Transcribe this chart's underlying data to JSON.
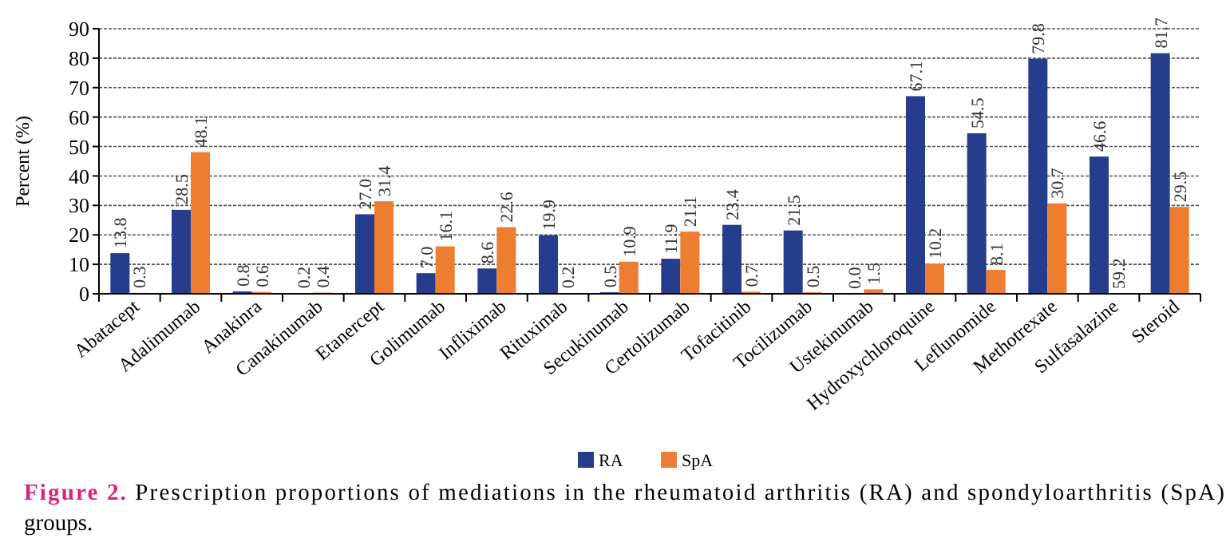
{
  "chart_data": {
    "type": "bar",
    "categories": [
      "Abatacept",
      "Adalimumab",
      "Anakinra",
      "Canakinumab",
      "Etanercept",
      "Golimumab",
      "Infliximab",
      "Rituximab",
      "Secukinumab",
      "Certolizumab",
      "Tofacitinib",
      "Tocilizumab",
      "Ustekinumab",
      "Hydroxychloroquine",
      "Leflunomide",
      "Methotrexate",
      "Sulfasalazine",
      "Steroid"
    ],
    "series": [
      {
        "name": "RA",
        "color": "#253d8c",
        "values": [
          13.8,
          28.5,
          0.8,
          0.2,
          27.0,
          7.0,
          8.6,
          19.9,
          0.5,
          11.9,
          23.4,
          21.5,
          0.0,
          67.1,
          54.5,
          79.8,
          46.6,
          81.7
        ],
        "value_labels": [
          "13.8",
          "28.5",
          "0.8",
          "0.2",
          "27.0",
          "7.0",
          "8.6",
          "19.9",
          "0.5",
          "11.9",
          "23.4",
          "21.5",
          "0.0",
          "67.1",
          "54.5",
          "79.8",
          "46.6",
          "81.7"
        ]
      },
      {
        "name": "SpA",
        "color": "#ed7d31",
        "values": [
          0.3,
          48.1,
          0.6,
          0.4,
          31.4,
          16.1,
          22.6,
          0.2,
          10.9,
          21.1,
          0.7,
          0.5,
          1.5,
          10.2,
          8.1,
          30.7,
          null,
          29.5
        ],
        "value_labels": [
          "0.3",
          "48.1",
          "0.6",
          "0.4",
          "31.4",
          "16.1",
          "22.6",
          "0.2",
          "10.9",
          "21.1",
          "0.7",
          "0.5",
          "1.5",
          "10.2",
          "8.1",
          "30.7",
          null,
          "29.5"
        ]
      }
    ],
    "ylabel": "Percent (%)",
    "ylim": [
      0,
      90
    ],
    "yticks": [
      0,
      10,
      20,
      30,
      40,
      50,
      60,
      70,
      80,
      90
    ],
    "grid": "y",
    "legend": "bottom",
    "annotations": [
      {
        "text": "59.2",
        "x": "Sulfasalazine",
        "y": 0
      },
      "Figure 2. Prescription proportions of mediations in the rheumatoid arthritis (RA) and spondyloarthritis (SpA) groups."
    ]
  }
}
